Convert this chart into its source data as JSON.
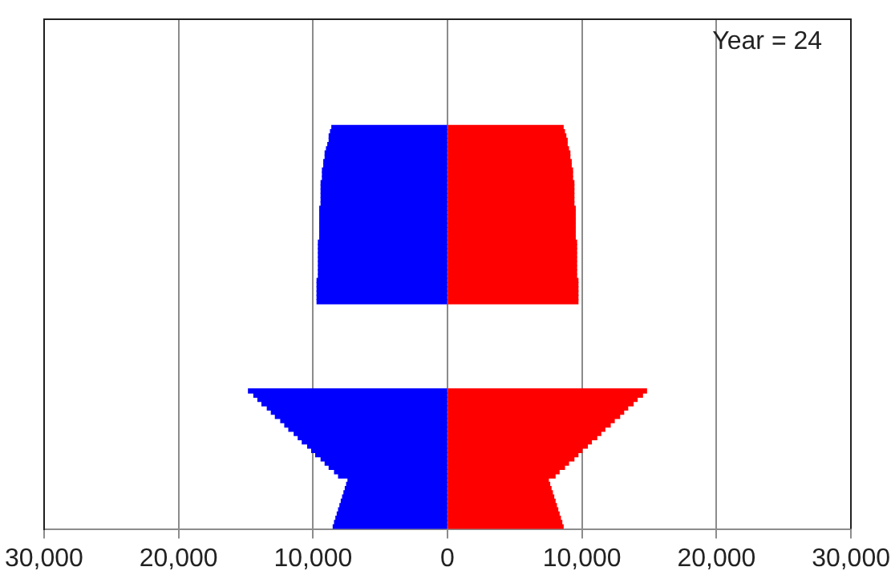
{
  "chart_data": {
    "type": "bar",
    "orientation": "horizontal",
    "stacked": true,
    "annotations": [
      "Year = 24"
    ],
    "categories": [
      null,
      null,
      null,
      null,
      null,
      null,
      null,
      null,
      null,
      null,
      null,
      null,
      null,
      null,
      null,
      null,
      null,
      null,
      null,
      null,
      null,
      null,
      null,
      null,
      null,
      null,
      null,
      null,
      null,
      null,
      null,
      null,
      null,
      null,
      null,
      null,
      null,
      null,
      null,
      null,
      null,
      null,
      null,
      null,
      null,
      null,
      null,
      null,
      null,
      null,
      null,
      null,
      null,
      null,
      null,
      null,
      null,
      null,
      null,
      null,
      null,
      null,
      null,
      null,
      null,
      null,
      null,
      null,
      null,
      null,
      null,
      null,
      null,
      null,
      null,
      null,
      null,
      null,
      null,
      null,
      null,
      null,
      null,
      null,
      null,
      null,
      null,
      null,
      null,
      null,
      null,
      null,
      null,
      null,
      null,
      null,
      null,
      null,
      null,
      null,
      null,
      null,
      null,
      null,
      null,
      null,
      null,
      null,
      null,
      null,
      null,
      null,
      null,
      null,
      null,
      null,
      null,
      null,
      null,
      null
    ],
    "series": [
      {
        "color": "#0000ff",
        "values": [
          null,
          null,
          null,
          null,
          null,
          null,
          null,
          null,
          null,
          null,
          null,
          null,
          null,
          null,
          null,
          null,
          null,
          null,
          null,
          null,
          null,
          null,
          null,
          null,
          null,
          -8600,
          -8700,
          -8800,
          -8800,
          -8900,
          -9000,
          -9100,
          -9100,
          -9200,
          -9200,
          -9300,
          -9300,
          -9300,
          -9400,
          -9400,
          -9400,
          -9400,
          -9400,
          -9400,
          -9500,
          -9500,
          -9500,
          -9500,
          -9500,
          -9500,
          -9500,
          -9500,
          -9600,
          -9600,
          -9600,
          -9600,
          -9600,
          -9600,
          -9600,
          -9600,
          -9600,
          -9700,
          -9700,
          -9700,
          -9700,
          -9700,
          -9700,
          null,
          null,
          null,
          null,
          null,
          null,
          null,
          null,
          null,
          null,
          null,
          null,
          null,
          null,
          null,
          null,
          null,
          null,
          null,
          null,
          -14800,
          -14400,
          -14100,
          -13800,
          -13400,
          -13100,
          -12800,
          -12400,
          -12100,
          -11800,
          -11400,
          -11100,
          -10800,
          -10400,
          -10100,
          -9800,
          -9400,
          -9100,
          -8800,
          -8400,
          -8100,
          -7400,
          -7500,
          -7600,
          -7700,
          -7800,
          -7900,
          -8000,
          -8100,
          -8200,
          -8300,
          -8400,
          -8500
        ]
      },
      {
        "color": "#ff0000",
        "values": [
          null,
          null,
          null,
          null,
          null,
          null,
          null,
          null,
          null,
          null,
          null,
          null,
          null,
          null,
          null,
          null,
          null,
          null,
          null,
          null,
          null,
          null,
          null,
          null,
          null,
          8600,
          8700,
          8800,
          8900,
          8900,
          9000,
          9100,
          9100,
          9200,
          9200,
          9300,
          9300,
          9300,
          9400,
          9400,
          9400,
          9400,
          9400,
          9400,
          9500,
          9500,
          9500,
          9500,
          9500,
          9500,
          9500,
          9500,
          9600,
          9600,
          9600,
          9600,
          9600,
          9600,
          9600,
          9600,
          9600,
          9700,
          9700,
          9700,
          9700,
          9700,
          9700,
          null,
          null,
          null,
          null,
          null,
          null,
          null,
          null,
          null,
          null,
          null,
          null,
          null,
          null,
          null,
          null,
          null,
          null,
          null,
          null,
          14800,
          14500,
          14100,
          13800,
          13400,
          13100,
          12800,
          12400,
          12100,
          11700,
          11400,
          11100,
          10700,
          10400,
          10000,
          9700,
          9400,
          9000,
          8700,
          8300,
          8000,
          7500,
          7600,
          7700,
          7800,
          7900,
          8000,
          8100,
          8200,
          8300,
          8400,
          8500,
          8600
        ]
      }
    ],
    "xlim": [
      -30000,
      30000
    ],
    "xticks": [
      {
        "value": -30000,
        "label": "30,000"
      },
      {
        "value": -20000,
        "label": "20,000"
      },
      {
        "value": -10000,
        "label": "10,000"
      },
      0,
      {
        "value": 10000,
        "label": "10,000"
      },
      {
        "value": 20000,
        "label": "20,000"
      },
      {
        "value": 30000,
        "label": "30,000"
      }
    ],
    "tick_labels": "x",
    "grid": "x",
    "legend": false
  }
}
